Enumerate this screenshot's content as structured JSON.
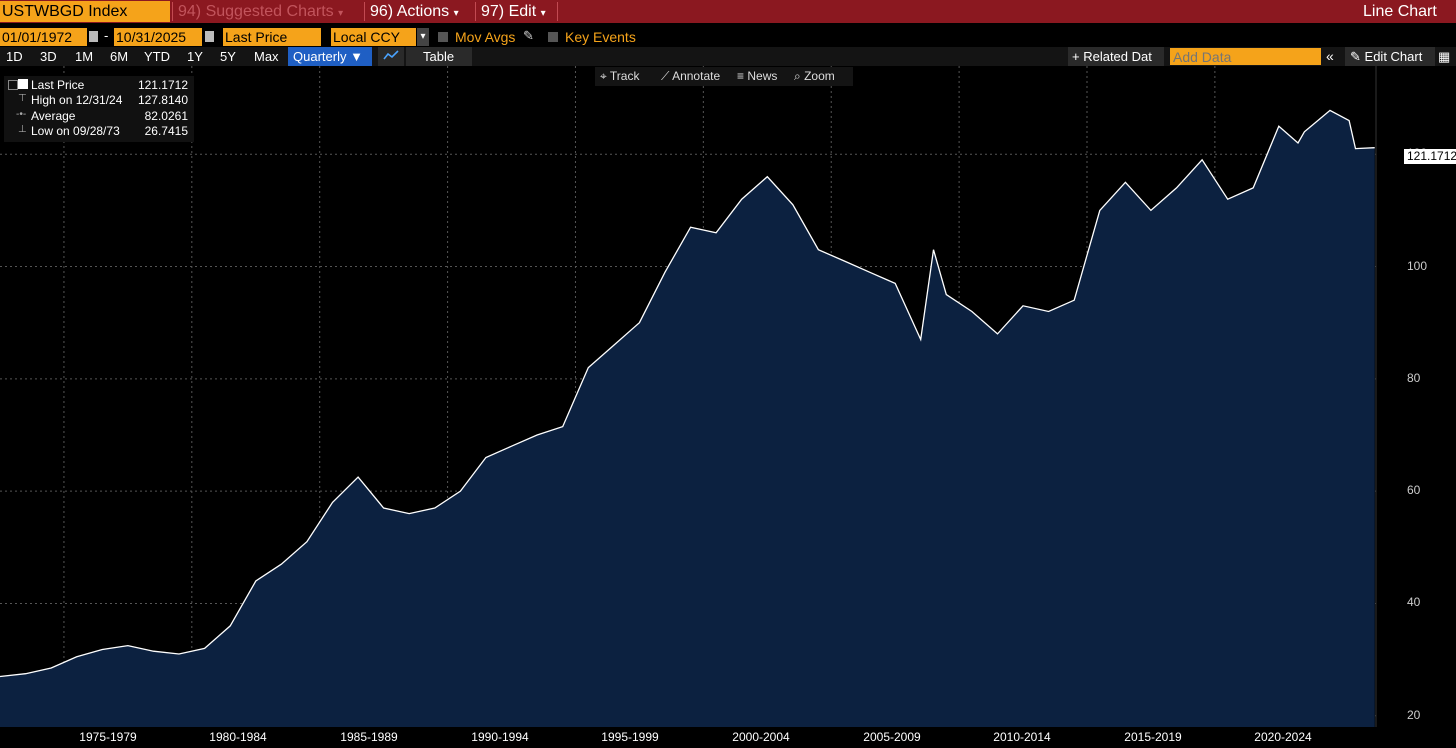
{
  "header": {
    "ticker": "USTWBGD Index",
    "suggested": "94) Suggested Charts",
    "actions": "96) Actions",
    "edit": "97) Edit",
    "chart_type": "Line Chart"
  },
  "controls": {
    "start_date": "01/01/1972",
    "end_date": "10/31/2025",
    "field": "Last Price",
    "currency": "Local CCY",
    "mov_avgs": "Mov Avgs",
    "key_events": "Key Events"
  },
  "ranges": [
    "1D",
    "3D",
    "1M",
    "6M",
    "YTD",
    "1Y",
    "5Y",
    "Max"
  ],
  "frequency": "Quarterly ▼",
  "table_label": "Table",
  "related": "+ Related Dat",
  "add_data_placeholder": "Add Data",
  "edit_chart": "Edit Chart",
  "tools": [
    "Track",
    "Annotate",
    "News",
    "Zoom"
  ],
  "legend": {
    "last_label": "Last Price",
    "last_value": "121.1712",
    "high_label": "High on 12/31/24",
    "high_value": "127.8140",
    "avg_label": "Average",
    "avg_value": "82.0261",
    "low_label": "Low on 09/28/73",
    "low_value": "26.7415"
  },
  "last_marker": "121.1712",
  "colors": {
    "accent": "#f5a31a",
    "header": "#8b1820",
    "area": "#0c2140",
    "line": "#ffffff"
  },
  "chart_data": {
    "type": "area",
    "series": [
      {
        "x": [
          1972.0,
          1973.0,
          1974.0,
          1975.0,
          1976.0,
          1977.0,
          1978.0,
          1979.0,
          1980.0,
          1981.0,
          1982.0,
          1983.0,
          1984.0,
          1985.0,
          1986.0,
          1987.0,
          1988.0,
          1989.0,
          1990.0,
          1991.0,
          1992.0,
          1993.0,
          1994.0,
          1995.0,
          1996.0,
          1997.0,
          1998.0,
          1999.0,
          2000.0,
          2001.0,
          2002.0,
          2003.0,
          2004.0,
          2005.0,
          2006.0,
          2007.0,
          2008.0,
          2008.5,
          2009.0,
          2010.0,
          2011.0,
          2012.0,
          2013.0,
          2014.0,
          2015.0,
          2016.0,
          2017.0,
          2018.0,
          2019.0,
          2020.0,
          2021.0,
          2022.0,
          2022.75,
          2023.0,
          2024.0,
          2024.75,
          2025.0,
          2025.75
        ],
        "values": [
          27,
          27.5,
          28.5,
          30.5,
          31.8,
          32.5,
          31.5,
          31,
          32,
          36,
          44,
          47,
          51,
          58,
          62.5,
          57,
          56,
          57,
          60,
          66,
          68,
          70,
          71.5,
          82,
          86,
          90,
          99,
          107,
          106,
          112,
          116,
          111,
          103,
          101,
          99,
          97,
          87,
          103,
          95,
          92,
          88,
          93,
          92,
          94,
          110,
          115,
          110,
          114,
          119,
          112,
          114,
          125,
          122,
          124,
          127.8,
          126,
          121,
          121.1712
        ]
      }
    ],
    "xlabels": [
      "1975-1979",
      "1980-1984",
      "1985-1989",
      "1990-1994",
      "1995-1999",
      "2000-2004",
      "2005-2009",
      "2010-2014",
      "2015-2019",
      "2020-2024"
    ],
    "yticks": [
      20,
      40,
      60,
      80,
      100,
      120
    ],
    "ylim": [
      18,
      135
    ],
    "xlim": [
      1972.0,
      2025.8
    ],
    "grid": true
  }
}
